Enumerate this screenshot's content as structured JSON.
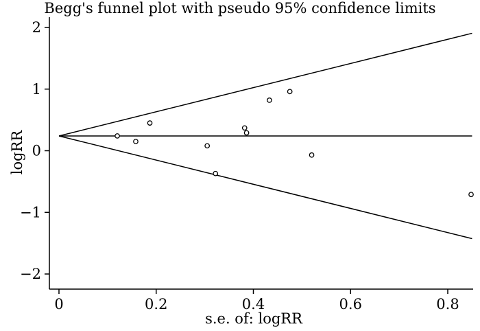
{
  "chart_data": {
    "type": "scatter",
    "title": "Begg's funnel plot with pseudo 95% confidence limits",
    "xlabel": "s.e. of: logRR",
    "ylabel": "logRR",
    "xlim": [
      0,
      0.85
    ],
    "ylim": [
      -2,
      2
    ],
    "xticks": [
      "0",
      "0.2",
      "0.4",
      "0.6",
      "0.8"
    ],
    "xtick_values": [
      0,
      0.2,
      0.4,
      0.6,
      0.8
    ],
    "yticks": [
      "2",
      "1",
      "0",
      "−1",
      "−2"
    ],
    "ytick_values": [
      2,
      1,
      0,
      -1,
      -2
    ],
    "pooled_estimate": 0.24,
    "confidence_limits": {
      "se": [
        0,
        0.85
      ],
      "upper": [
        0.24,
        1.906
      ],
      "lower": [
        0.24,
        -1.426
      ]
    },
    "points": [
      {
        "x": 0.12,
        "y": 0.24
      },
      {
        "x": 0.158,
        "y": 0.15
      },
      {
        "x": 0.187,
        "y": 0.45
      },
      {
        "x": 0.305,
        "y": 0.08
      },
      {
        "x": 0.322,
        "y": -0.37
      },
      {
        "x": 0.382,
        "y": 0.37
      },
      {
        "x": 0.386,
        "y": 0.29
      },
      {
        "x": 0.433,
        "y": 0.82
      },
      {
        "x": 0.475,
        "y": 0.96
      },
      {
        "x": 0.52,
        "y": -0.07
      },
      {
        "x": 0.848,
        "y": -0.71
      }
    ],
    "grid": false,
    "legend": "none"
  }
}
